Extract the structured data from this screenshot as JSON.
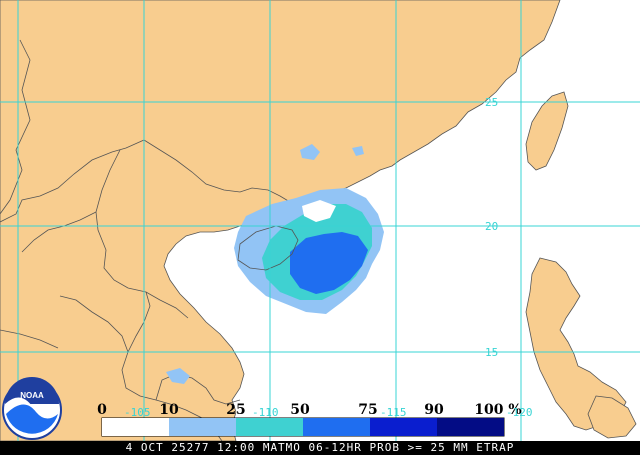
{
  "map": {
    "colors": {
      "land": "#f8cd8f",
      "ocean": "#ffffff",
      "border": "#555555",
      "grid": "#38d4d4"
    },
    "latitude_labels": [
      "25",
      "20",
      "15"
    ],
    "longitude_labels": [
      "-105",
      "-110",
      "-115",
      "-120"
    ]
  },
  "logo": {
    "name": "NOAA",
    "text": "NOAA"
  },
  "legend": {
    "labels": [
      "0",
      "10",
      "25",
      "50",
      "75",
      "90",
      "100 %"
    ],
    "bins": [
      {
        "range": "0-10",
        "color": "#ffffff"
      },
      {
        "range": "10-25",
        "color": "#92c4f5"
      },
      {
        "range": "25-50",
        "color": "#3fd1d1"
      },
      {
        "range": "50-75",
        "color": "#1f6ef0"
      },
      {
        "range": "75-90",
        "color": "#0a1ecf"
      },
      {
        "range": "90-100",
        "color": "#030c85"
      }
    ]
  },
  "status_bar": {
    "text": "4 OCT 25277 12:00 MATMO 06-12HR PROB >= 25 MM ETRAP"
  }
}
